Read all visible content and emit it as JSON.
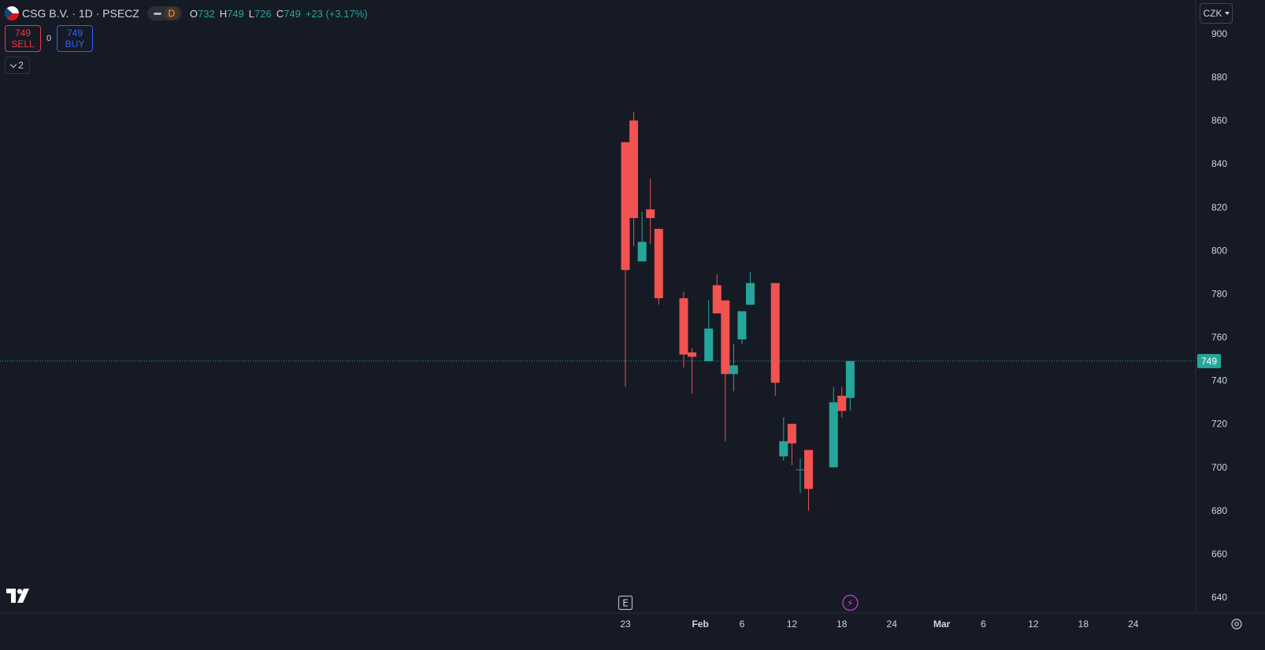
{
  "header": {
    "title": "CSG B.V. · 1D · PSECZ",
    "interval_badge": "D",
    "ohlc": [
      {
        "label": "O",
        "value": "732"
      },
      {
        "label": "H",
        "value": "749"
      },
      {
        "label": "L",
        "value": "726"
      },
      {
        "label": "C",
        "value": "749"
      }
    ],
    "change": "+23 (+3.17%)"
  },
  "trade": {
    "sell_price": "749",
    "sell_label": "SELL",
    "spread": "0",
    "buy_price": "749",
    "buy_label": "BUY"
  },
  "indicators_toggle": "2",
  "currency": "CZK",
  "colors": {
    "up": "#26a69a",
    "down": "#f05350",
    "background": "#161a25",
    "grid_text": "#d1d4dc",
    "events": "#d03adf"
  },
  "chart_data": {
    "type": "candlestick",
    "ylim": [
      635,
      905
    ],
    "y_ticks": [
      640,
      660,
      680,
      700,
      720,
      740,
      760,
      780,
      800,
      820,
      840,
      860,
      880,
      900
    ],
    "last_price": 749,
    "x_tick_labels": [
      {
        "label": "23",
        "day": 23
      },
      {
        "label": "Feb",
        "day": 32
      },
      {
        "label": "6",
        "day": 37
      },
      {
        "label": "12",
        "day": 43
      },
      {
        "label": "18",
        "day": 49
      },
      {
        "label": "24",
        "day": 55
      },
      {
        "label": "Mar",
        "day": 61
      },
      {
        "label": "6",
        "day": 66
      },
      {
        "label": "12",
        "day": 72
      },
      {
        "label": "18",
        "day": 78
      },
      {
        "label": "24",
        "day": 84
      }
    ],
    "candles": [
      {
        "day": 23,
        "o": 850,
        "h": 850,
        "l": 737,
        "c": 791
      },
      {
        "day": 24,
        "o": 860,
        "h": 864,
        "l": 802,
        "c": 815
      },
      {
        "day": 25,
        "o": 795,
        "h": 818,
        "l": 795,
        "c": 804
      },
      {
        "day": 26,
        "o": 819,
        "h": 833,
        "l": 803,
        "c": 815
      },
      {
        "day": 27,
        "o": 810,
        "h": 810,
        "l": 775,
        "c": 778
      },
      {
        "day": 30,
        "o": 778,
        "h": 781,
        "l": 746,
        "c": 752
      },
      {
        "day": 31,
        "o": 753,
        "h": 755,
        "l": 734,
        "c": 751
      },
      {
        "day": 33,
        "o": 749,
        "h": 777,
        "l": 749,
        "c": 764
      },
      {
        "day": 34,
        "o": 784,
        "h": 789,
        "l": 771,
        "c": 771
      },
      {
        "day": 35,
        "o": 777,
        "h": 777,
        "l": 712,
        "c": 743
      },
      {
        "day": 36,
        "o": 743,
        "h": 757,
        "l": 735,
        "c": 747
      },
      {
        "day": 37,
        "o": 759,
        "h": 772,
        "l": 757,
        "c": 772
      },
      {
        "day": 38,
        "o": 775,
        "h": 790,
        "l": 775,
        "c": 785
      },
      {
        "day": 41,
        "o": 785,
        "h": 785,
        "l": 733,
        "c": 739
      },
      {
        "day": 42,
        "o": 705,
        "h": 723,
        "l": 703,
        "c": 712
      },
      {
        "day": 43,
        "o": 720,
        "h": 720,
        "l": 701,
        "c": 711
      },
      {
        "day": 44,
        "o": 699,
        "h": 704,
        "l": 688,
        "c": 699
      },
      {
        "day": 45,
        "o": 708,
        "h": 708,
        "l": 680,
        "c": 690
      },
      {
        "day": 48,
        "o": 700,
        "h": 737,
        "l": 700,
        "c": 730
      },
      {
        "day": 49,
        "o": 733,
        "h": 737,
        "l": 723,
        "c": 726
      },
      {
        "day": 50,
        "o": 732,
        "h": 749,
        "l": 726,
        "c": 749
      }
    ],
    "events": [
      {
        "type": "earnings",
        "label": "E",
        "day": 23
      },
      {
        "type": "dividend",
        "label": "⚡",
        "day": 50
      }
    ]
  }
}
